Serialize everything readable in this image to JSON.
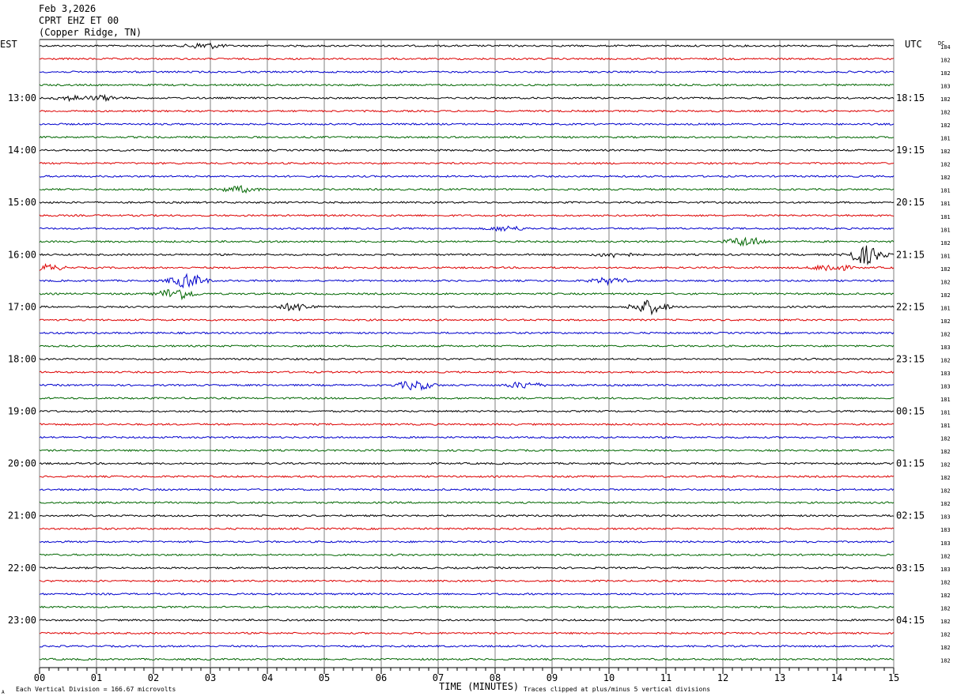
{
  "header": {
    "date": "Feb 3,2026",
    "station": "CPRT EHZ ET 00",
    "location": "(Copper Ridge, TN)"
  },
  "left_zone": "EST",
  "right_zone": "UTC",
  "dc_label": "DC",
  "footer": {
    "scale_note": "Each Vertical Division =  166.67 microvolts",
    "clip_note": "Traces clipped at plus/minus 5 vertical divisions",
    "corner_mark": "A"
  },
  "colors": {
    "trace_cycle": [
      "#000000",
      "#dd0000",
      "#0000cc",
      "#006600"
    ],
    "grid": "#808080"
  },
  "chart_data": {
    "type": "line",
    "title": "",
    "xlabel": "TIME (MINUTES)",
    "xlim": [
      0,
      15
    ],
    "x_ticks": [
      "00",
      "01",
      "02",
      "03",
      "04",
      "05",
      "06",
      "07",
      "08",
      "09",
      "10",
      "11",
      "12",
      "13",
      "14",
      "15"
    ],
    "row_count": 48,
    "left_hour_labels": [
      "13:00",
      "14:00",
      "15:00",
      "16:00",
      "17:00",
      "18:00",
      "19:00",
      "20:00",
      "21:00",
      "22:00",
      "23:00"
    ],
    "right_hour_labels": [
      "18:15",
      "19:15",
      "20:15",
      "21:15",
      "22:15",
      "23:15",
      "00:15",
      "01:15",
      "02:15",
      "03:15",
      "04:15"
    ],
    "dc_offsets": [
      184,
      182,
      182,
      183,
      182,
      182,
      182,
      181,
      182,
      182,
      182,
      181,
      181,
      181,
      181,
      182,
      181,
      182,
      182,
      182,
      181,
      182,
      182,
      183,
      182,
      183,
      183,
      181,
      181,
      181,
      182,
      182,
      182,
      182,
      182,
      182,
      183,
      183,
      183,
      182,
      183,
      182,
      182,
      182,
      182,
      182,
      182,
      182
    ],
    "events": [
      {
        "row": 0,
        "minute": 2.9,
        "amplitude": 4
      },
      {
        "row": 4,
        "minute": 0.6,
        "amplitude": 3
      },
      {
        "row": 4,
        "minute": 1.1,
        "amplitude": 3
      },
      {
        "row": 11,
        "minute": 3.5,
        "amplitude": 4
      },
      {
        "row": 14,
        "minute": 8.2,
        "amplitude": 3
      },
      {
        "row": 15,
        "minute": 12.4,
        "amplitude": 6
      },
      {
        "row": 16,
        "minute": 10.1,
        "amplitude": 3
      },
      {
        "row": 16,
        "minute": 14.5,
        "amplitude": 12
      },
      {
        "row": 17,
        "minute": 0.1,
        "amplitude": 4
      },
      {
        "row": 17,
        "minute": 13.9,
        "amplitude": 5
      },
      {
        "row": 18,
        "minute": 2.6,
        "amplitude": 9
      },
      {
        "row": 18,
        "minute": 10.0,
        "amplitude": 4
      },
      {
        "row": 19,
        "minute": 2.4,
        "amplitude": 8
      },
      {
        "row": 20,
        "minute": 4.5,
        "amplitude": 5
      },
      {
        "row": 20,
        "minute": 10.7,
        "amplitude": 9
      },
      {
        "row": 26,
        "minute": 6.6,
        "amplitude": 6
      },
      {
        "row": 26,
        "minute": 8.5,
        "amplitude": 4
      }
    ]
  }
}
